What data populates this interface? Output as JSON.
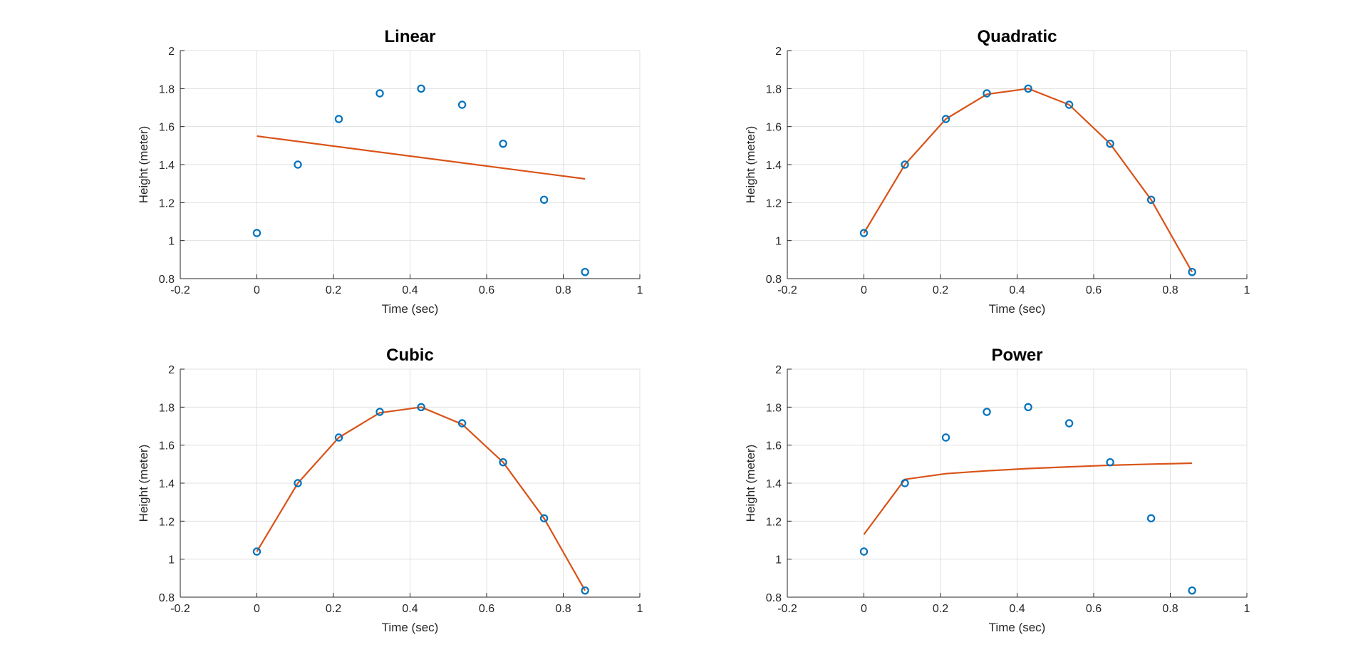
{
  "colors": {
    "marker": "#0072BD",
    "fit_line": "#D95319",
    "axis": "#262626",
    "grid": "#E0E0E0",
    "background": "#FFFFFF"
  },
  "chart_data": [
    {
      "type": "scatter",
      "title": "Linear",
      "xlabel": "Time (sec)",
      "ylabel": "Height (meter)",
      "xlim": [
        -0.2,
        1
      ],
      "ylim": [
        0.8,
        2
      ],
      "xticks": [
        "-0.2",
        "0",
        "0.2",
        "0.4",
        "0.6",
        "0.8",
        "1"
      ],
      "yticks": [
        "0.8",
        "1",
        "1.2",
        "1.4",
        "1.6",
        "1.8",
        "2"
      ],
      "grid": true,
      "series": [
        {
          "kind": "markers",
          "marker": "circle",
          "x": [
            0,
            0.107,
            0.214,
            0.321,
            0.429,
            0.536,
            0.643,
            0.75,
            0.857
          ],
          "y": [
            1.04,
            1.4,
            1.64,
            1.775,
            1.8,
            1.715,
            1.51,
            1.215,
            0.835
          ]
        },
        {
          "kind": "line",
          "x": [
            0,
            0.857
          ],
          "y": [
            1.55,
            1.325
          ]
        }
      ]
    },
    {
      "type": "scatter",
      "title": "Quadratic",
      "xlabel": "Time (sec)",
      "ylabel": "Height (meter)",
      "xlim": [
        -0.2,
        1
      ],
      "ylim": [
        0.8,
        2
      ],
      "xticks": [
        "-0.2",
        "0",
        "0.2",
        "0.4",
        "0.6",
        "0.8",
        "1"
      ],
      "yticks": [
        "0.8",
        "1",
        "1.2",
        "1.4",
        "1.6",
        "1.8",
        "2"
      ],
      "grid": true,
      "series": [
        {
          "kind": "markers",
          "marker": "circle",
          "x": [
            0,
            0.107,
            0.214,
            0.321,
            0.429,
            0.536,
            0.643,
            0.75,
            0.857
          ],
          "y": [
            1.04,
            1.4,
            1.64,
            1.775,
            1.8,
            1.715,
            1.51,
            1.215,
            0.835
          ]
        },
        {
          "kind": "line",
          "x": [
            0,
            0.107,
            0.214,
            0.321,
            0.429,
            0.536,
            0.643,
            0.75,
            0.857
          ],
          "y": [
            1.04,
            1.4,
            1.64,
            1.77,
            1.8,
            1.715,
            1.51,
            1.215,
            0.835
          ]
        }
      ]
    },
    {
      "type": "scatter",
      "title": "Cubic",
      "xlabel": "Time (sec)",
      "ylabel": "Height (meter)",
      "xlim": [
        -0.2,
        1
      ],
      "ylim": [
        0.8,
        2
      ],
      "xticks": [
        "-0.2",
        "0",
        "0.2",
        "0.4",
        "0.6",
        "0.8",
        "1"
      ],
      "yticks": [
        "0.8",
        "1",
        "1.2",
        "1.4",
        "1.6",
        "1.8",
        "2"
      ],
      "grid": true,
      "series": [
        {
          "kind": "markers",
          "marker": "circle",
          "x": [
            0,
            0.107,
            0.214,
            0.321,
            0.429,
            0.536,
            0.643,
            0.75,
            0.857
          ],
          "y": [
            1.04,
            1.4,
            1.64,
            1.775,
            1.8,
            1.715,
            1.51,
            1.215,
            0.835
          ]
        },
        {
          "kind": "line",
          "x": [
            0,
            0.107,
            0.214,
            0.321,
            0.429,
            0.536,
            0.643,
            0.75,
            0.857
          ],
          "y": [
            1.04,
            1.4,
            1.64,
            1.77,
            1.8,
            1.71,
            1.51,
            1.215,
            0.835
          ]
        }
      ]
    },
    {
      "type": "scatter",
      "title": "Power",
      "xlabel": "Time (sec)",
      "ylabel": "Height (meter)",
      "xlim": [
        -0.2,
        1
      ],
      "ylim": [
        0.8,
        2
      ],
      "xticks": [
        "-0.2",
        "0",
        "0.2",
        "0.4",
        "0.6",
        "0.8",
        "1"
      ],
      "yticks": [
        "0.8",
        "1",
        "1.2",
        "1.4",
        "1.6",
        "1.8",
        "2"
      ],
      "grid": true,
      "series": [
        {
          "kind": "markers",
          "marker": "circle",
          "x": [
            0,
            0.107,
            0.214,
            0.321,
            0.429,
            0.536,
            0.643,
            0.75,
            0.857
          ],
          "y": [
            1.04,
            1.4,
            1.64,
            1.775,
            1.8,
            1.715,
            1.51,
            1.215,
            0.835
          ]
        },
        {
          "kind": "line",
          "x": [
            0,
            0.107,
            0.214,
            0.321,
            0.429,
            0.536,
            0.643,
            0.75,
            0.857
          ],
          "y": [
            1.13,
            1.42,
            1.45,
            1.465,
            1.477,
            1.486,
            1.494,
            1.5,
            1.505
          ]
        }
      ]
    }
  ]
}
